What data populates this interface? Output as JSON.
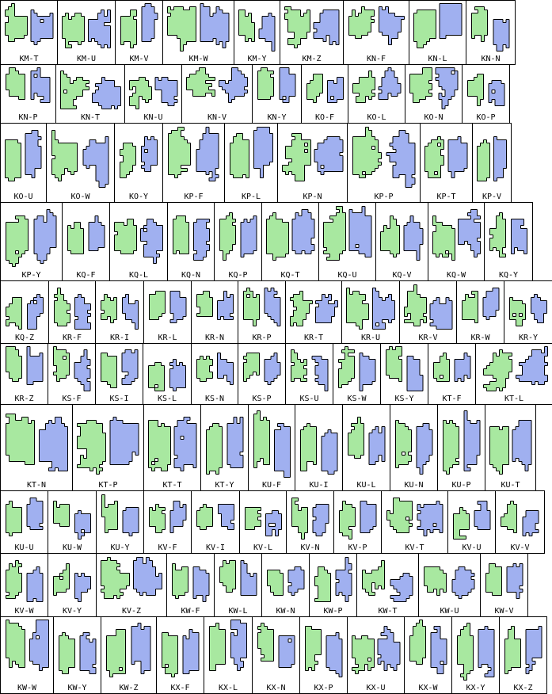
{
  "colors": {
    "green": "#a8e8a0",
    "blue": "#a0b0f0",
    "outline": "#000000",
    "border": "#000000"
  },
  "rows": [
    [
      "KM-T",
      "KM-U",
      "KM-V",
      "KM-W",
      "KM-Y",
      "KM-Z",
      "KN-F",
      "KN-L",
      "KN-N"
    ],
    [
      "KN-P",
      "KN-T",
      "KN-U",
      "KN-V",
      "KN-Y",
      "KO-F",
      "KO-L",
      "KO-N",
      "KO-P"
    ],
    [
      "KO-U",
      "KO-W",
      "KO-Y",
      "KP-F",
      "KP-L",
      "KP-N",
      "KP-P",
      "KP-T",
      "KP-V"
    ],
    [
      "KP-Y",
      "KQ-F",
      "KQ-L",
      "KQ-N",
      "KQ-P",
      "KQ-T",
      "KQ-U",
      "KQ-V",
      "KQ-W",
      "KQ-Y"
    ],
    [
      "KQ-Z",
      "KR-F",
      "KR-I",
      "KR-L",
      "KR-N",
      "KR-P",
      "KR-T",
      "KR-U",
      "KR-V",
      "KR-W",
      "KR-Y"
    ],
    [
      "KR-Z",
      "KS-F",
      "KS-I",
      "KS-L",
      "KS-N",
      "KS-P",
      "KS-U",
      "KS-W",
      "KS-Y",
      "KT-F",
      "KT-L"
    ],
    [
      "KT-N",
      "KT-P",
      "KT-T",
      "KT-Y",
      "KU-F",
      "KU-I",
      "KU-L",
      "KU-N",
      "KU-P",
      "KU-T"
    ],
    [
      "KU-U",
      "KU-W",
      "KU-Y",
      "KV-F",
      "KV-I",
      "KV-L",
      "KV-N",
      "KV-P",
      "KV-T",
      "KV-U",
      "KV-V"
    ],
    [
      "KV-W",
      "KV-Y",
      "KV-Z",
      "KW-F",
      "KW-L",
      "KW-N",
      "KW-P",
      "KW-T",
      "KW-U",
      "KW-V"
    ],
    [
      "KW-W",
      "KW-Y",
      "KW-Z",
      "KX-F",
      "KX-L",
      "KX-N",
      "KX-P",
      "KX-U",
      "KX-W",
      "KX-Y",
      "KX-Z"
    ]
  ]
}
